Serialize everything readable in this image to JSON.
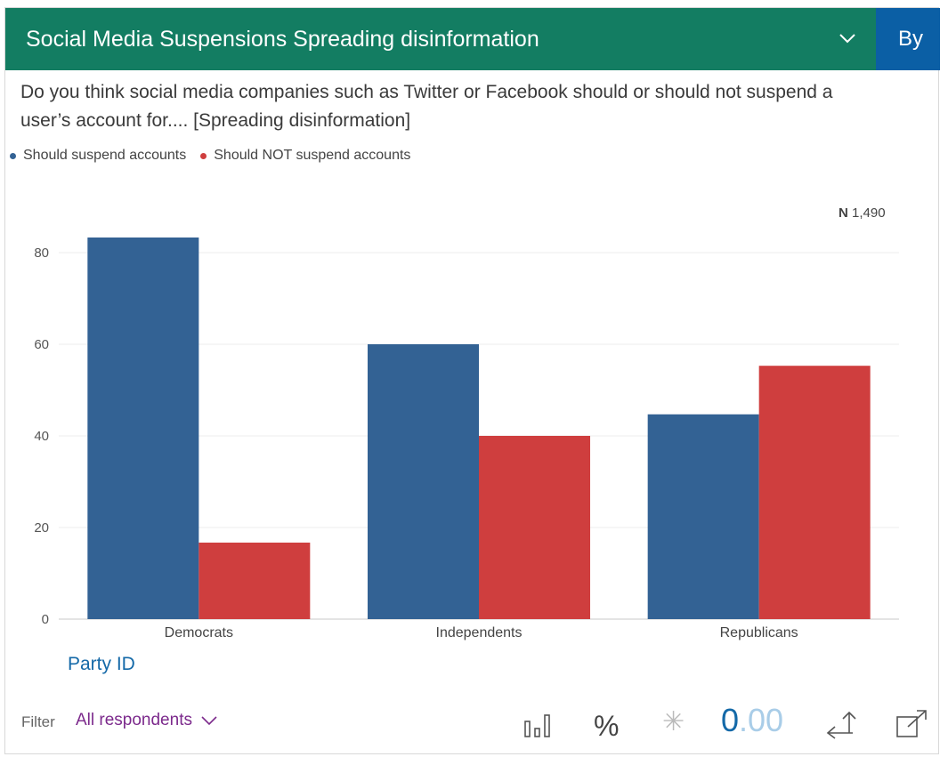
{
  "header": {
    "title": "Social Media Suspensions Spreading disinformation",
    "by_label": "By"
  },
  "question": "Do you think social media companies such as Twitter or Facebook should or should not suspend a user’s account for.... [Spreading disinformation]",
  "n": {
    "prefix": "N",
    "value": "1,490"
  },
  "chart_data": {
    "type": "bar",
    "title": "Social Media Suspensions Spreading disinformation",
    "xlabel": "Party ID",
    "ylabel": "",
    "categories": [
      "Democrats",
      "Independents",
      "Republicans"
    ],
    "series": [
      {
        "name": "Should suspend accounts",
        "color": "#336294",
        "values": [
          83.3,
          60.0,
          44.7
        ]
      },
      {
        "name": "Should NOT suspend accounts",
        "color": "#cf3e3e",
        "values": [
          16.7,
          40.0,
          55.3
        ]
      }
    ],
    "ylim": [
      0,
      85
    ],
    "yticks": [
      0,
      20,
      40,
      60,
      80
    ],
    "grid": true,
    "legend_position": "top-left"
  },
  "filter": {
    "label": "Filter",
    "value": "All respondents"
  },
  "toolbar": {
    "chart_icon": "bar-chart-icon",
    "percent_label": "%",
    "asterisk_label": "✳",
    "decimals_main": "0",
    "decimals_rest": ".00",
    "swap_icon": "swap-axes-icon",
    "popout_icon": "popout-icon"
  }
}
